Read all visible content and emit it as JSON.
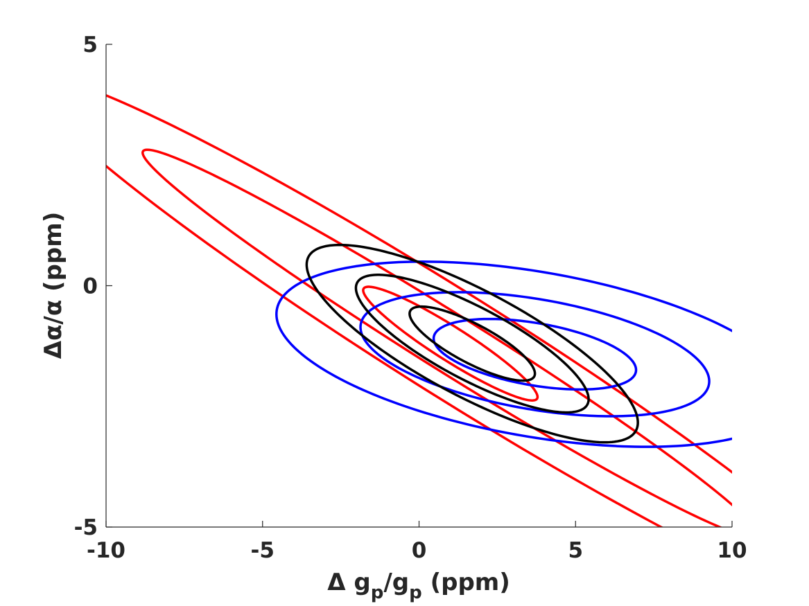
{
  "chart_data": {
    "type": "line",
    "title": "",
    "xlim": [
      -10,
      10
    ],
    "ylim": [
      -5,
      5
    ],
    "x_ticks": [
      "-10",
      "-5",
      "0",
      "5",
      "10"
    ],
    "y_ticks": [
      "-5",
      "0",
      "5"
    ],
    "xlabel": {
      "prefix": "Δ g",
      "sub1": "p",
      "mid": "/g",
      "sub2": "p",
      "suffix": " (ppm)"
    },
    "ylabel": "Δα/α (ppm)",
    "grid": false,
    "colors": {
      "red": "#ff0000",
      "blue": "#0000ff",
      "black": "#000000",
      "axis": "#262626"
    },
    "series": [
      {
        "color": "red",
        "contours": [
          {
            "cx": 1.0,
            "cy": -1.2,
            "a": 3.0,
            "b": 0.38,
            "angle_deg": -22
          },
          {
            "cx": 1.0,
            "cy": -1.2,
            "a": 10.6,
            "b": 0.65,
            "angle_deg": -22
          },
          {
            "cx": 1.0,
            "cy": -1.2,
            "a": 14.5,
            "b": 1.18,
            "angle_deg": -22
          }
        ]
      },
      {
        "color": "blue",
        "contours": [
          {
            "cx": 3.7,
            "cy": -1.42,
            "a": 3.25,
            "b": 0.65,
            "angle_deg": -6
          },
          {
            "cx": 3.7,
            "cy": -1.42,
            "a": 5.6,
            "b": 1.15,
            "angle_deg": -6
          },
          {
            "cx": 3.7,
            "cy": -1.42,
            "a": 8.3,
            "b": 1.72,
            "angle_deg": -6
          }
        ]
      },
      {
        "color": "black",
        "contours": [
          {
            "cx": 1.7,
            "cy": -1.2,
            "a": 2.1,
            "b": 0.43,
            "angle_deg": -18
          },
          {
            "cx": 1.7,
            "cy": -1.2,
            "a": 3.9,
            "b": 0.8,
            "angle_deg": -18
          },
          {
            "cx": 1.7,
            "cy": -1.2,
            "a": 5.55,
            "b": 1.17,
            "angle_deg": -18
          }
        ]
      }
    ]
  }
}
